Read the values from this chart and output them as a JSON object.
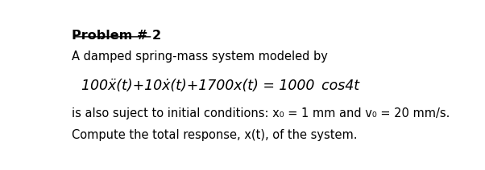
{
  "bg_color": "#ffffff",
  "text_color": "#000000",
  "font_size_title": 11.5,
  "font_size_body": 10.5,
  "font_size_eq": 12.5,
  "title": "Problem # 2",
  "line1": "A damped spring-mass system modeled by",
  "eq_part1": "100ẍ(t)+10ẋ(t)+1700x(t) = 1000 cos4t",
  "line3a": "is also suject to initial conditions: x",
  "line3b": " = 1 mm and v",
  "line3c": " = 20 mm/s.",
  "line4": "Compute the total response, x(t), of the system.",
  "sub0": "0"
}
